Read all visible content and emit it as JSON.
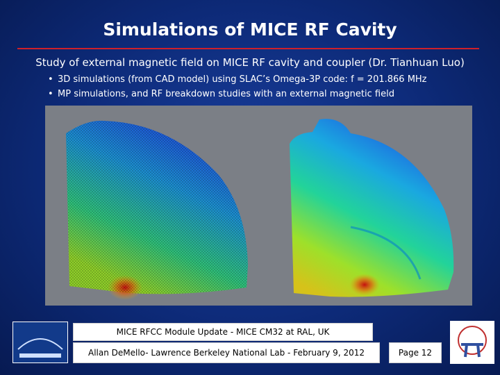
{
  "header": {
    "title": "Simulations of MICE RF Cavity"
  },
  "subtitle": "Study of external magnetic field on MICE RF cavity and coupler (Dr. Tianhuan Luo)",
  "bullets": [
    "3D simulations (from CAD model) using SLAC’s Omega-3P code: f = 201.866 MHz",
    "MP simulations, and RF breakdown studies with an external magnetic field"
  ],
  "footer": {
    "event": "MICE RFCC Module Update - MICE CM32 at RAL, UK",
    "author": "Allan DeMello- Lawrence Berkeley National Lab - February 9, 2012",
    "page": "Page 12"
  }
}
